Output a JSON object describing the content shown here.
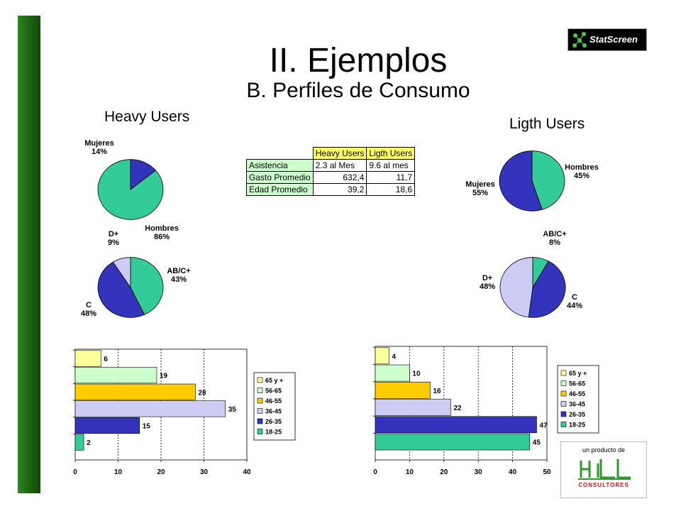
{
  "header": {
    "title": "II. Ejemplos",
    "subtitle": "B. Perfiles de Consumo",
    "logo_text": "StatScreen"
  },
  "headings": {
    "heavy": "Heavy Users",
    "light": "Ligth Users"
  },
  "summary_table": {
    "columns": [
      "Heavy Users",
      "Ligth Users"
    ],
    "rows": [
      {
        "label": "Asistencia",
        "heavy": "2.3 al Mes",
        "light": "9.6 al mes"
      },
      {
        "label": "Gasto Promedio",
        "heavy": "632,4",
        "light": "11,7"
      },
      {
        "label": "Edad Promedio",
        "heavy": "39,2",
        "light": "18,6"
      }
    ]
  },
  "footer": {
    "caption": "un producto de",
    "brand": "CONSULTORES"
  },
  "colors": {
    "teal": "#33cc99",
    "blue": "#3333bb",
    "lavender": "#ccccf5",
    "yellow": "#ffff99",
    "mint": "#ccffcc",
    "orange": "#ffcc00",
    "green_bar": "#1f6b12"
  },
  "chart_data": [
    {
      "id": "heavy-gender",
      "type": "pie",
      "slices": [
        {
          "label": "Hombres",
          "value": 86,
          "pct": "86%",
          "color": "#33cc99"
        },
        {
          "label": "Mujeres",
          "value": 14,
          "pct": "14%",
          "color": "#3333bb"
        }
      ]
    },
    {
      "id": "light-gender",
      "type": "pie",
      "slices": [
        {
          "label": "Hombres",
          "value": 45,
          "pct": "45%",
          "color": "#33cc99"
        },
        {
          "label": "Mujeres",
          "value": 55,
          "pct": "55%",
          "color": "#3333bb"
        }
      ]
    },
    {
      "id": "heavy-nse",
      "type": "pie",
      "slices": [
        {
          "label": "AB/C+",
          "value": 43,
          "pct": "43%",
          "color": "#33cc99"
        },
        {
          "label": "C",
          "value": 48,
          "pct": "48%",
          "color": "#3333bb"
        },
        {
          "label": "D+",
          "value": 9,
          "pct": "9%",
          "color": "#ccccf5"
        }
      ]
    },
    {
      "id": "light-nse",
      "type": "pie",
      "slices": [
        {
          "label": "AB/C+",
          "value": 8,
          "pct": "8%",
          "color": "#33cc99"
        },
        {
          "label": "C",
          "value": 44,
          "pct": "44%",
          "color": "#3333bb"
        },
        {
          "label": "D+",
          "value": 48,
          "pct": "48%",
          "color": "#ccccf5"
        }
      ]
    },
    {
      "id": "heavy-age",
      "type": "bar",
      "orientation": "horizontal",
      "categories": [
        "65 y +",
        "56-65",
        "46-55",
        "36-45",
        "26-35",
        "18-25"
      ],
      "values": [
        6,
        19,
        28,
        35,
        15,
        2
      ],
      "colors": [
        "#ffff99",
        "#ccffcc",
        "#ffcc00",
        "#ccccf5",
        "#3333bb",
        "#33cc99"
      ],
      "xlim": [
        0,
        40
      ],
      "xticks": [
        0,
        10,
        20,
        30,
        40
      ],
      "legend": "right"
    },
    {
      "id": "light-age",
      "type": "bar",
      "orientation": "horizontal",
      "categories": [
        "65 y +",
        "56-65",
        "46-55",
        "36-45",
        "26-35",
        "18-25"
      ],
      "values": [
        4,
        10,
        16,
        22,
        47,
        45
      ],
      "colors": [
        "#ffff99",
        "#ccffcc",
        "#ffcc00",
        "#ccccf5",
        "#3333bb",
        "#33cc99"
      ],
      "xlim": [
        0,
        50
      ],
      "xticks": [
        0,
        10,
        20,
        30,
        40,
        50
      ],
      "legend": "right"
    }
  ]
}
